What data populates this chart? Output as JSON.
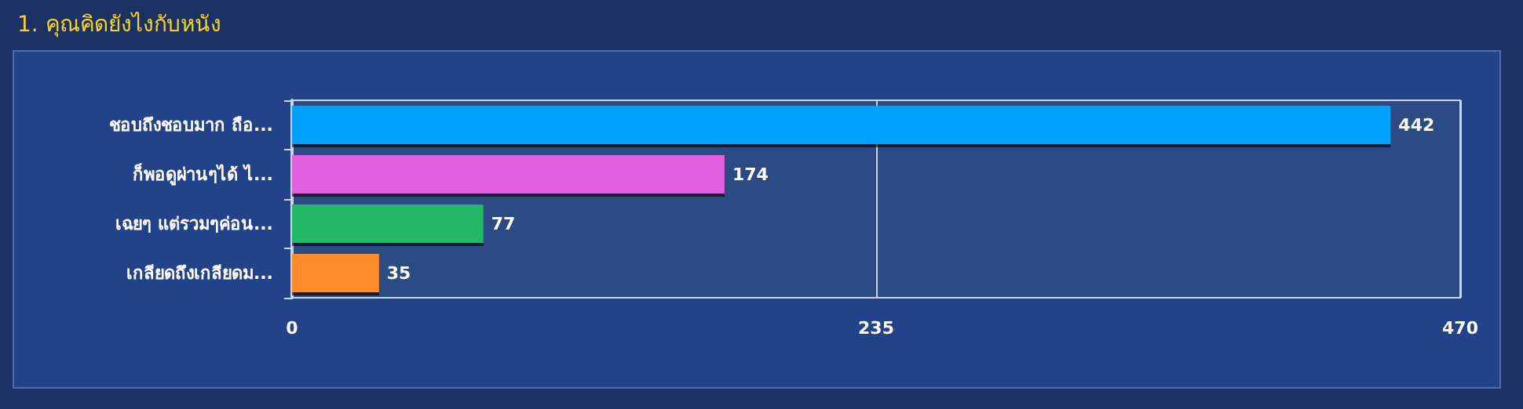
{
  "chart_data": {
    "type": "bar",
    "orientation": "horizontal",
    "title": "1. คุณคิดยังไงกับหนัง",
    "categories": [
      "ชอบถึงชอบมาก ถือ...",
      "ก็พอดูผ่านๆได้ ไ...",
      "เฉยๆ แต่รวมๆค่อน...",
      "เกลียดถึงเกลียดม..."
    ],
    "values": [
      442,
      174,
      77,
      35
    ],
    "colors": [
      "#00a2ff",
      "#e060e0",
      "#22b866",
      "#ff8c2a"
    ],
    "xlim": [
      0,
      470
    ],
    "xticks": [
      0,
      235,
      470
    ],
    "grid": "x",
    "data_labels": true
  }
}
